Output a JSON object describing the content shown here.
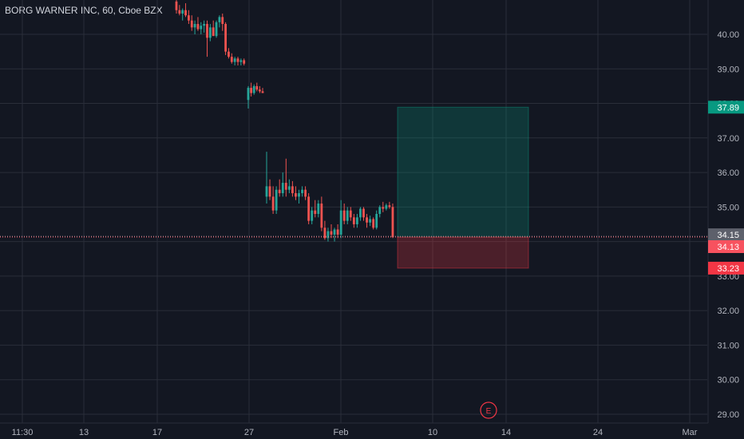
{
  "header": {
    "symbol_line": "BORG WARNER INC, 60, Cboe BZX"
  },
  "chart_data": {
    "type": "candlestick",
    "title": "BORG WARNER INC, 60, Cboe BZX",
    "price_axis": {
      "ticks": [
        "29.00",
        "30.00",
        "31.00",
        "32.00",
        "33.00",
        "34.00",
        "35.00",
        "36.00",
        "37.00",
        "38.00",
        "39.00",
        "40.00"
      ],
      "ylim": [
        28.9,
        41.0
      ]
    },
    "time_axis": {
      "ticks": [
        "11:30",
        "13",
        "17",
        "27",
        "Feb",
        "10",
        "14",
        "24",
        "Mar"
      ]
    },
    "price_tags": [
      {
        "label": "37.89",
        "value": 37.89,
        "color": "#26a69a",
        "bg": "#089981"
      },
      {
        "label": "34.15",
        "value": 34.15,
        "color": "#787b86",
        "bg": "#5d606b"
      },
      {
        "label": "34.13",
        "value": 34.13,
        "color": "#f7525f",
        "bg": "#f7525f"
      },
      {
        "label": "33.23",
        "value": 33.23,
        "color": "#f23645",
        "bg": "#f23645"
      }
    ],
    "position": {
      "entry": 34.13,
      "target": 37.89,
      "stop": 33.23
    },
    "event_marker": "E",
    "grid": true,
    "colors": {
      "up": "#26a69a",
      "down": "#ef5350",
      "background": "#131722",
      "grid": "#2a2e39"
    },
    "candles": [
      [
        40.95,
        41.0,
        40.6,
        40.7
      ],
      [
        40.7,
        40.85,
        40.55,
        40.6
      ],
      [
        40.6,
        40.75,
        40.4,
        40.7
      ],
      [
        40.7,
        40.9,
        40.5,
        40.55
      ],
      [
        40.55,
        40.7,
        40.3,
        40.4
      ],
      [
        40.4,
        40.55,
        40.1,
        40.2
      ],
      [
        40.2,
        40.4,
        40.0,
        40.3
      ],
      [
        40.3,
        40.5,
        40.1,
        40.15
      ],
      [
        40.15,
        40.35,
        40.0,
        40.25
      ],
      [
        40.25,
        40.4,
        40.05,
        40.3
      ],
      [
        40.3,
        40.4,
        39.35,
        39.9
      ],
      [
        39.9,
        40.3,
        39.8,
        40.2
      ],
      [
        40.2,
        40.4,
        40.0,
        39.95
      ],
      [
        39.95,
        40.4,
        39.9,
        40.35
      ],
      [
        40.35,
        40.55,
        40.2,
        40.5
      ],
      [
        40.5,
        40.6,
        40.1,
        40.3
      ],
      [
        40.3,
        40.35,
        39.4,
        39.5
      ],
      [
        39.5,
        39.6,
        39.3,
        39.35
      ],
      [
        39.35,
        39.45,
        39.15,
        39.2
      ],
      [
        39.2,
        39.35,
        39.1,
        39.3
      ],
      [
        39.3,
        39.35,
        39.1,
        39.2
      ],
      [
        39.2,
        39.3,
        39.1,
        39.25
      ],
      [
        39.25,
        39.3,
        39.1,
        39.15
      ],
      [
        38.1,
        38.5,
        37.85,
        38.45
      ],
      [
        38.45,
        38.6,
        38.2,
        38.3
      ],
      [
        38.3,
        38.55,
        38.25,
        38.5
      ],
      [
        38.5,
        38.6,
        38.35,
        38.4
      ],
      [
        38.4,
        38.5,
        38.3,
        38.35
      ],
      [
        38.35,
        38.45,
        38.3,
        38.3
      ],
      [
        35.3,
        36.6,
        35.1,
        35.6
      ],
      [
        35.6,
        35.8,
        35.2,
        35.3
      ],
      [
        35.3,
        35.6,
        34.8,
        34.9
      ],
      [
        34.9,
        35.6,
        34.8,
        35.5
      ],
      [
        35.5,
        35.8,
        35.3,
        35.4
      ],
      [
        35.4,
        36.0,
        35.3,
        35.7
      ],
      [
        35.7,
        36.4,
        35.3,
        35.5
      ],
      [
        35.5,
        35.8,
        35.4,
        35.6
      ],
      [
        35.6,
        35.75,
        35.3,
        35.4
      ],
      [
        35.4,
        35.6,
        35.2,
        35.3
      ],
      [
        35.3,
        35.5,
        35.1,
        35.4
      ],
      [
        35.4,
        35.6,
        35.3,
        35.5
      ],
      [
        35.5,
        35.6,
        35.2,
        35.3
      ],
      [
        35.3,
        35.4,
        34.5,
        34.6
      ],
      [
        34.6,
        35.0,
        34.5,
        34.9
      ],
      [
        34.9,
        35.2,
        34.7,
        34.8
      ],
      [
        34.8,
        35.2,
        34.7,
        35.1
      ],
      [
        35.1,
        35.3,
        34.3,
        34.4
      ],
      [
        34.4,
        34.6,
        34.05,
        34.1
      ],
      [
        34.1,
        34.4,
        34.0,
        34.3
      ],
      [
        34.3,
        34.5,
        34.1,
        34.2
      ],
      [
        34.2,
        34.4,
        34.0,
        34.35
      ],
      [
        34.35,
        34.5,
        34.1,
        34.2
      ],
      [
        34.2,
        35.2,
        34.1,
        34.9
      ],
      [
        34.9,
        35.1,
        34.5,
        34.6
      ],
      [
        34.6,
        35.0,
        34.5,
        34.9
      ],
      [
        34.9,
        35.0,
        34.6,
        34.7
      ],
      [
        34.7,
        34.8,
        34.4,
        34.5
      ],
      [
        34.5,
        34.8,
        34.4,
        34.7
      ],
      [
        34.7,
        35.0,
        34.6,
        34.95
      ],
      [
        34.95,
        35.0,
        34.6,
        34.7
      ],
      [
        34.7,
        34.8,
        34.4,
        34.55
      ],
      [
        34.55,
        34.75,
        34.45,
        34.65
      ],
      [
        34.65,
        34.7,
        34.35,
        34.4
      ],
      [
        34.4,
        34.9,
        34.35,
        34.8
      ],
      [
        34.8,
        35.05,
        34.7,
        35.0
      ],
      [
        35.0,
        35.15,
        34.85,
        34.95
      ],
      [
        34.95,
        35.1,
        34.9,
        35.05
      ],
      [
        35.05,
        35.15,
        34.95,
        35.0
      ],
      [
        35.0,
        35.1,
        34.1,
        34.13
      ]
    ]
  }
}
